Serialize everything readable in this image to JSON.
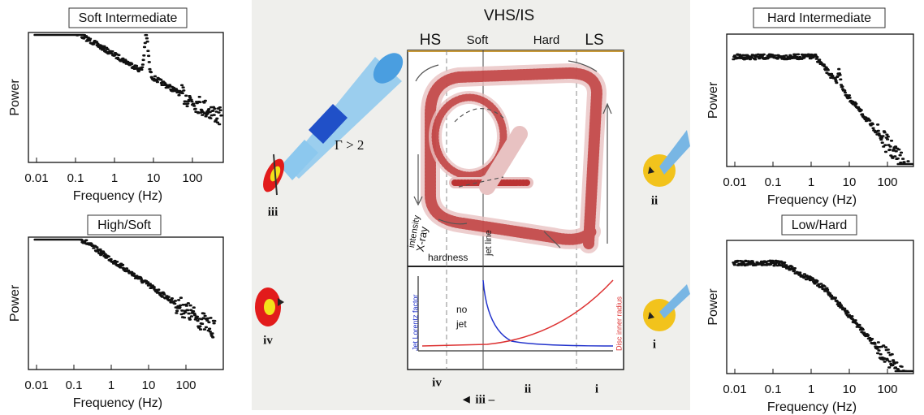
{
  "panels": [
    {
      "title": "Soft Intermediate",
      "ylabel": "Power",
      "xlabel": "Frequency (Hz)",
      "xticks": [
        "0.01",
        "0.1",
        "1",
        "10",
        "100"
      ]
    },
    {
      "title": "High/Soft",
      "ylabel": "Power",
      "xlabel": "Frequency (Hz)",
      "xticks": [
        "0.01",
        "0.1",
        "1",
        "10",
        "100"
      ]
    },
    {
      "title": "Hard Intermediate",
      "ylabel": "Power",
      "xlabel": "Frequency (Hz)",
      "xticks": [
        "0.01",
        "0.1",
        "1",
        "10",
        "100"
      ]
    },
    {
      "title": "Low/Hard",
      "ylabel": "Power",
      "xlabel": "Frequency (Hz)",
      "xticks": [
        "0.01",
        "0.1",
        "1",
        "10",
        "100"
      ]
    }
  ],
  "center": {
    "title": "VHS/IS",
    "states": [
      "HS",
      "Soft",
      "Hard",
      "LS"
    ],
    "gamma": "Γ > 2",
    "sources": [
      "iii",
      "iv",
      "ii",
      "i"
    ],
    "xray": "X-ray",
    "intensity": "intensity",
    "hardness": "hardness",
    "jet_line": "jet line",
    "no_jet": [
      "no",
      "jet"
    ],
    "lorentz": "Jet Lorentz factor",
    "disc": "Disc inner radius",
    "bottom": [
      "iv",
      "ii",
      "i",
      "◄ iii –"
    ]
  }
}
